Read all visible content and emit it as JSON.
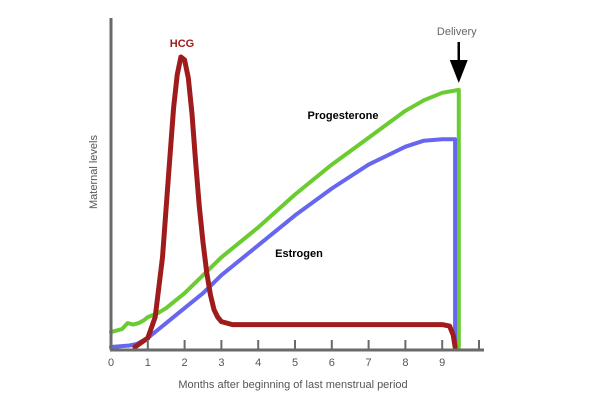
{
  "chart_data": {
    "type": "line",
    "title": "",
    "xlabel": "Months after beginning of last menstrual period",
    "ylabel": "Maternal levels",
    "xlim": [
      0,
      10
    ],
    "ylim": [
      0,
      100
    ],
    "x_ticks": [
      "0",
      "1",
      "2",
      "3",
      "4",
      "5",
      "6",
      "7",
      "8",
      "9"
    ],
    "grid": false,
    "legend": "inline labels",
    "series": [
      {
        "name": "HCG",
        "color": "#a01c1c",
        "points": [
          [
            0.65,
            0
          ],
          [
            1.0,
            3
          ],
          [
            1.2,
            10
          ],
          [
            1.4,
            30
          ],
          [
            1.55,
            55
          ],
          [
            1.7,
            80
          ],
          [
            1.8,
            91
          ],
          [
            1.9,
            97
          ],
          [
            2.0,
            96
          ],
          [
            2.1,
            90
          ],
          [
            2.2,
            78
          ],
          [
            2.3,
            62
          ],
          [
            2.4,
            47
          ],
          [
            2.5,
            35
          ],
          [
            2.6,
            25
          ],
          [
            2.7,
            17.5
          ],
          [
            2.8,
            12.5
          ],
          [
            2.9,
            10
          ],
          [
            3.0,
            8.5
          ],
          [
            3.3,
            7.5
          ],
          [
            4.0,
            7.5
          ],
          [
            5,
            7.5
          ],
          [
            6,
            7.5
          ],
          [
            7,
            7.5
          ],
          [
            8,
            7.5
          ],
          [
            9.0,
            7.5
          ],
          [
            9.2,
            7
          ],
          [
            9.3,
            4
          ],
          [
            9.35,
            0
          ]
        ]
      },
      {
        "name": "Progesterone",
        "color": "#6acc30",
        "points": [
          [
            0,
            5
          ],
          [
            0.3,
            6
          ],
          [
            0.45,
            8
          ],
          [
            0.6,
            7.5
          ],
          [
            0.75,
            8
          ],
          [
            0.9,
            9
          ],
          [
            1.0,
            10
          ],
          [
            1.1,
            10.5
          ],
          [
            1.3,
            11.5
          ],
          [
            1.5,
            13
          ],
          [
            2.0,
            18
          ],
          [
            3.0,
            30
          ],
          [
            4.0,
            40
          ],
          [
            5.0,
            51
          ],
          [
            6.0,
            61
          ],
          [
            7.0,
            70
          ],
          [
            8.0,
            79
          ],
          [
            8.5,
            82.5
          ],
          [
            9.0,
            85
          ],
          [
            9.45,
            86
          ],
          [
            9.45,
            0
          ]
        ]
      },
      {
        "name": "Estrogen",
        "color": "#6666ee",
        "points": [
          [
            0,
            0
          ],
          [
            0.5,
            0.5
          ],
          [
            0.7,
            1
          ],
          [
            1.0,
            3
          ],
          [
            1.5,
            8
          ],
          [
            2.0,
            13
          ],
          [
            2.5,
            18
          ],
          [
            3.0,
            24
          ],
          [
            4.0,
            34
          ],
          [
            5.0,
            44
          ],
          [
            6.0,
            53
          ],
          [
            7.0,
            61
          ],
          [
            8.0,
            67
          ],
          [
            8.5,
            69
          ],
          [
            9.0,
            69.5
          ],
          [
            9.35,
            69.5
          ],
          [
            9.35,
            0
          ]
        ]
      }
    ],
    "annotations": [
      {
        "text": "Delivery",
        "x": 9.45
      }
    ]
  }
}
